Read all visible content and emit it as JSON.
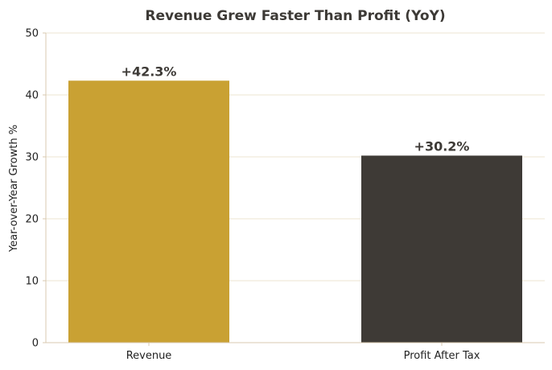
{
  "chart_data": {
    "type": "bar",
    "title": "Revenue Grew Faster Than Profit (YoY)",
    "xlabel": "",
    "ylabel": "Year-over-Year Growth %",
    "categories": [
      "Revenue",
      "Profit After Tax"
    ],
    "values": [
      42.3,
      30.2
    ],
    "data_labels": [
      "+42.3%",
      "+30.2%"
    ],
    "bar_colors": [
      "#c9a133",
      "#3e3a36"
    ],
    "ylim": [
      0,
      50
    ],
    "yticks": [
      0,
      10,
      20,
      30,
      40,
      50
    ],
    "grid": true,
    "grid_color": "#ece6d0",
    "spine_color": "#d9c9b0"
  }
}
